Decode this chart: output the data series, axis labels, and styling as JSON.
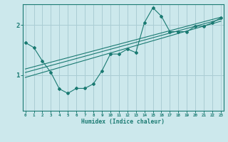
{
  "title": "",
  "xlabel": "Humidex (Indice chaleur)",
  "ylabel": "",
  "bg_color": "#cce8ec",
  "grid_color": "#aacdd4",
  "line_color": "#1a7a72",
  "x_ticks": [
    0,
    1,
    2,
    3,
    4,
    5,
    6,
    7,
    8,
    9,
    10,
    11,
    12,
    13,
    14,
    15,
    16,
    17,
    18,
    19,
    20,
    21,
    22,
    23
  ],
  "y_ticks": [
    1,
    2
  ],
  "xlim": [
    -0.3,
    23.3
  ],
  "ylim": [
    0.28,
    2.42
  ],
  "series1_x": [
    0,
    1,
    2,
    3,
    4,
    5,
    6,
    7,
    8,
    9,
    10,
    11,
    12,
    13,
    14,
    15,
    16,
    17,
    18,
    19,
    20,
    21,
    22,
    23
  ],
  "series1_y": [
    1.65,
    1.55,
    1.28,
    1.05,
    0.72,
    0.63,
    0.73,
    0.73,
    0.82,
    1.08,
    1.42,
    1.42,
    1.52,
    1.45,
    2.05,
    2.35,
    2.18,
    1.87,
    1.87,
    1.87,
    1.98,
    1.98,
    2.05,
    2.15
  ],
  "series2_x": [
    0,
    23
  ],
  "series2_y": [
    0.95,
    2.08
  ],
  "series3_x": [
    0,
    23
  ],
  "series3_y": [
    1.05,
    2.12
  ],
  "series4_x": [
    0,
    23
  ],
  "series4_y": [
    1.12,
    2.16
  ]
}
